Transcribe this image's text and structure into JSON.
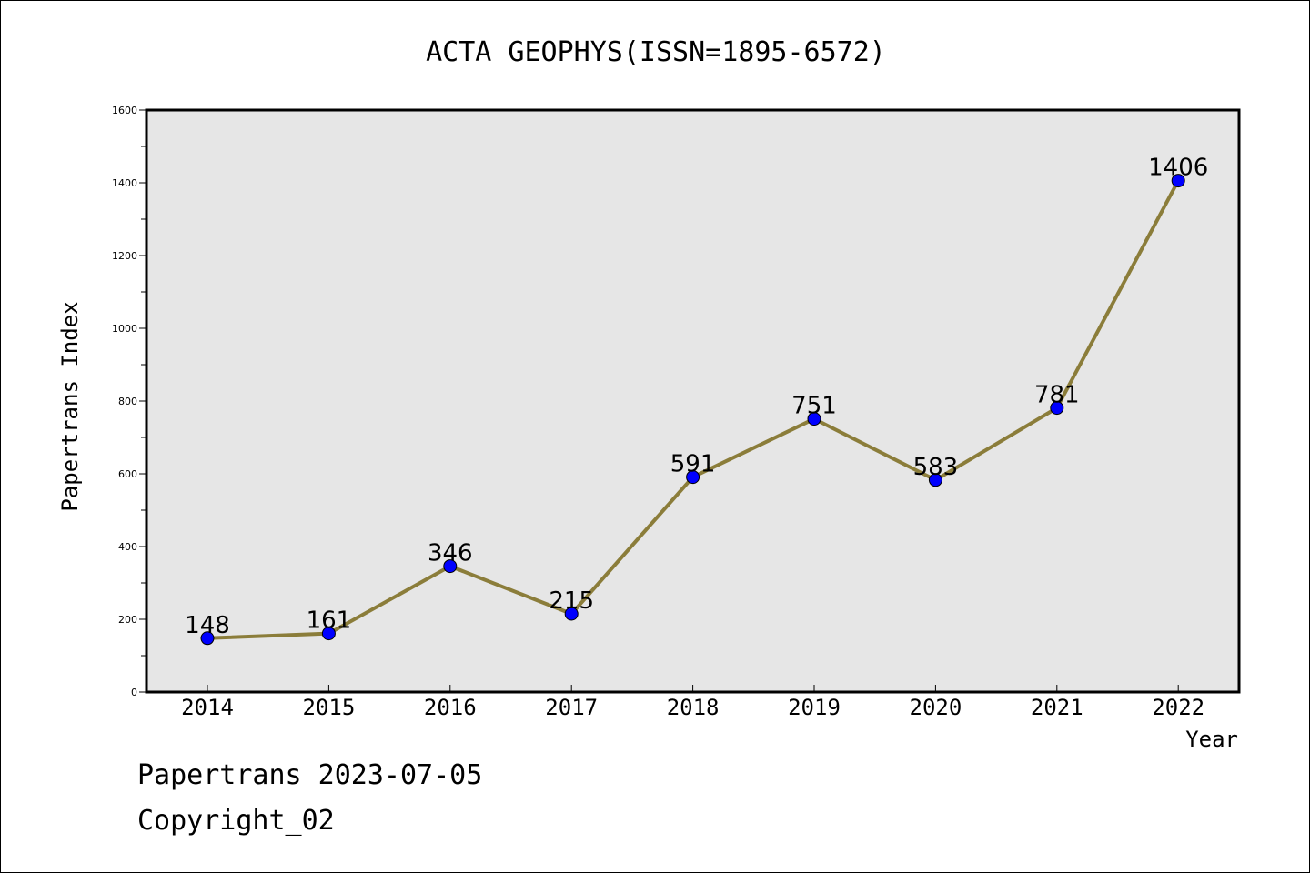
{
  "chart_data": {
    "type": "line",
    "title": "ACTA GEOPHYS(ISSN=1895-6572)",
    "xlabel": "Year",
    "ylabel": "Papertrans Index",
    "categories": [
      "2014",
      "2015",
      "2016",
      "2017",
      "2018",
      "2019",
      "2020",
      "2021",
      "2022"
    ],
    "series": [
      {
        "values": [
          148,
          161,
          346,
          215,
          591,
          751,
          583,
          781,
          1406
        ]
      }
    ],
    "data_labels": [
      "148",
      "161",
      "346",
      "215",
      "591",
      "751",
      "583",
      "781",
      "1406"
    ],
    "yticks": [
      "0",
      "200",
      "400",
      "600",
      "800",
      "1000",
      "1200",
      "1400",
      "1600"
    ],
    "ylim": [
      0,
      1600
    ],
    "grid": false,
    "legend": "none",
    "colors": {
      "line": "#8b7d3a",
      "marker_fill": "#0000ff",
      "plot_background": "#e6e6e6"
    }
  },
  "footer": {
    "line1": "Papertrans 2023-07-05",
    "line2": "Copyright_02"
  }
}
